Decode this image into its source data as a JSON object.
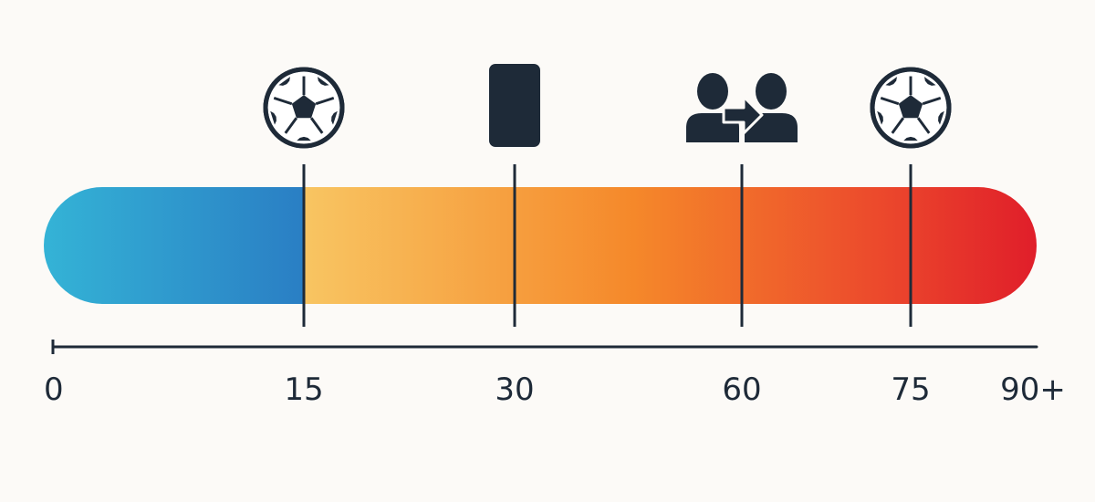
{
  "timeline": {
    "start_minute": 0,
    "end_minute": 90,
    "ticks": [
      {
        "minute": 0,
        "label": "0"
      },
      {
        "minute": 15,
        "label": "15"
      },
      {
        "minute": 30,
        "label": "30"
      },
      {
        "minute": 60,
        "label": "60"
      },
      {
        "minute": 75,
        "label": "75"
      },
      {
        "minute": 90,
        "label": "90+"
      }
    ],
    "events": [
      {
        "minute": 15,
        "icon": "soccer-ball-icon"
      },
      {
        "minute": 30,
        "icon": "card-icon"
      },
      {
        "minute": 60,
        "icon": "substitution-icon"
      },
      {
        "minute": 75,
        "icon": "soccer-ball-icon"
      }
    ],
    "colors": {
      "icon": "#1e2a38",
      "line": "#1e2a38",
      "bar_segment_1": [
        "#34b3d6",
        "#2a7ec4"
      ],
      "bar_segment_2": [
        "#f8c562",
        "#f5882a",
        "#ec4a2c",
        "#e01e2a"
      ]
    }
  }
}
